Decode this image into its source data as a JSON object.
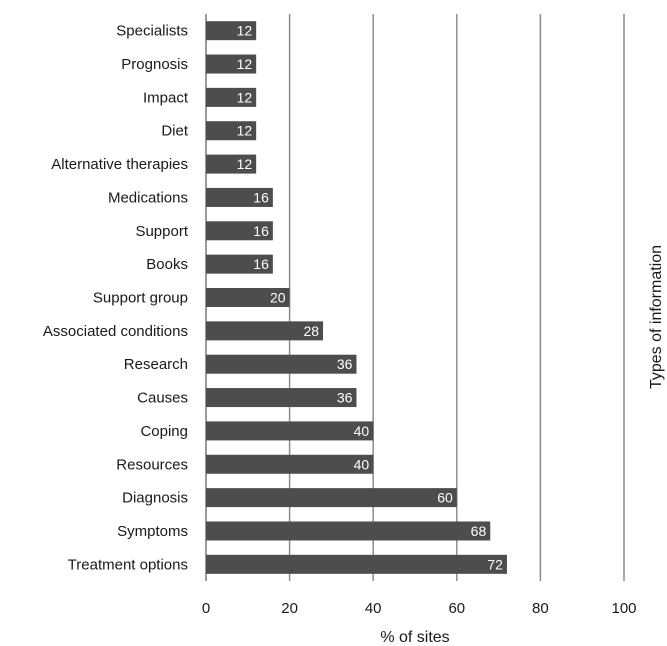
{
  "chart_data": {
    "type": "bar",
    "orientation": "horizontal",
    "categories": [
      "Specialists",
      "Prognosis",
      "Impact",
      "Diet",
      "Alternative therapies",
      "Medications",
      "Support",
      "Books",
      "Support group",
      "Associated conditions",
      "Research",
      "Causes",
      "Coping",
      "Resources",
      "Diagnosis",
      "Symptoms",
      "Treatment options"
    ],
    "values": [
      12,
      12,
      12,
      12,
      12,
      16,
      16,
      16,
      20,
      28,
      36,
      36,
      40,
      40,
      60,
      68,
      72
    ],
    "xlabel": "% of sites",
    "ylabel": "Types of information",
    "xlim": [
      0,
      100
    ],
    "xticks": [
      0,
      20,
      40,
      60,
      80,
      100
    ],
    "grid": "vertical",
    "legend": "none",
    "bar_color": "#4d4d4d",
    "grid_color": "#8c8c8c",
    "data_label_color": "#ffffff"
  }
}
